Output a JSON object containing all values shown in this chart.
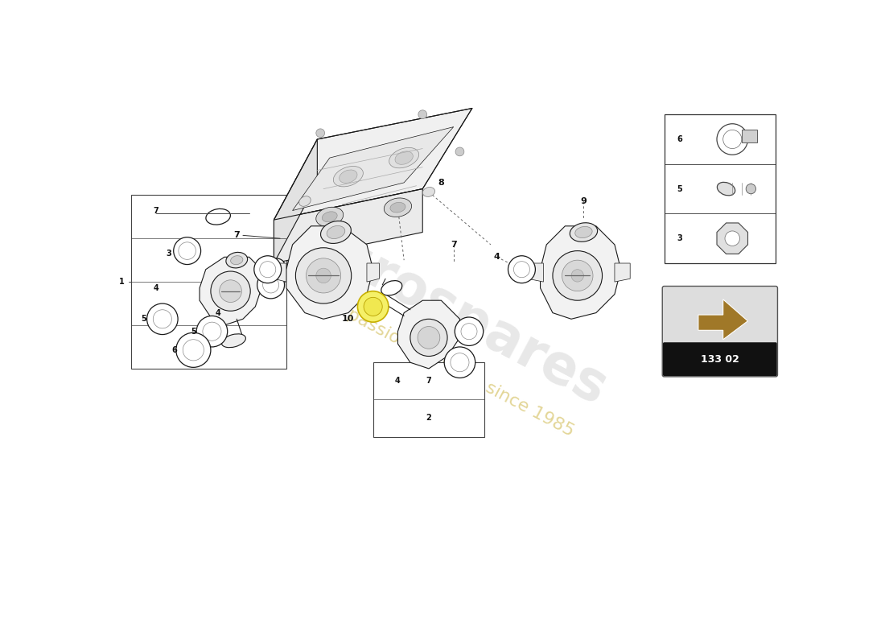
{
  "bg_color": "#ffffff",
  "part_number": "133 02",
  "line_color": "#1a1a1a",
  "wm1_color": "#cccccc",
  "wm1_alpha": 0.45,
  "wm2_color": "#d4c060",
  "wm2_alpha": 0.65,
  "legend_nums": [
    "6",
    "5",
    "3"
  ],
  "arrow_fill": "#a07828",
  "arrow_outline": "#ffffff"
}
